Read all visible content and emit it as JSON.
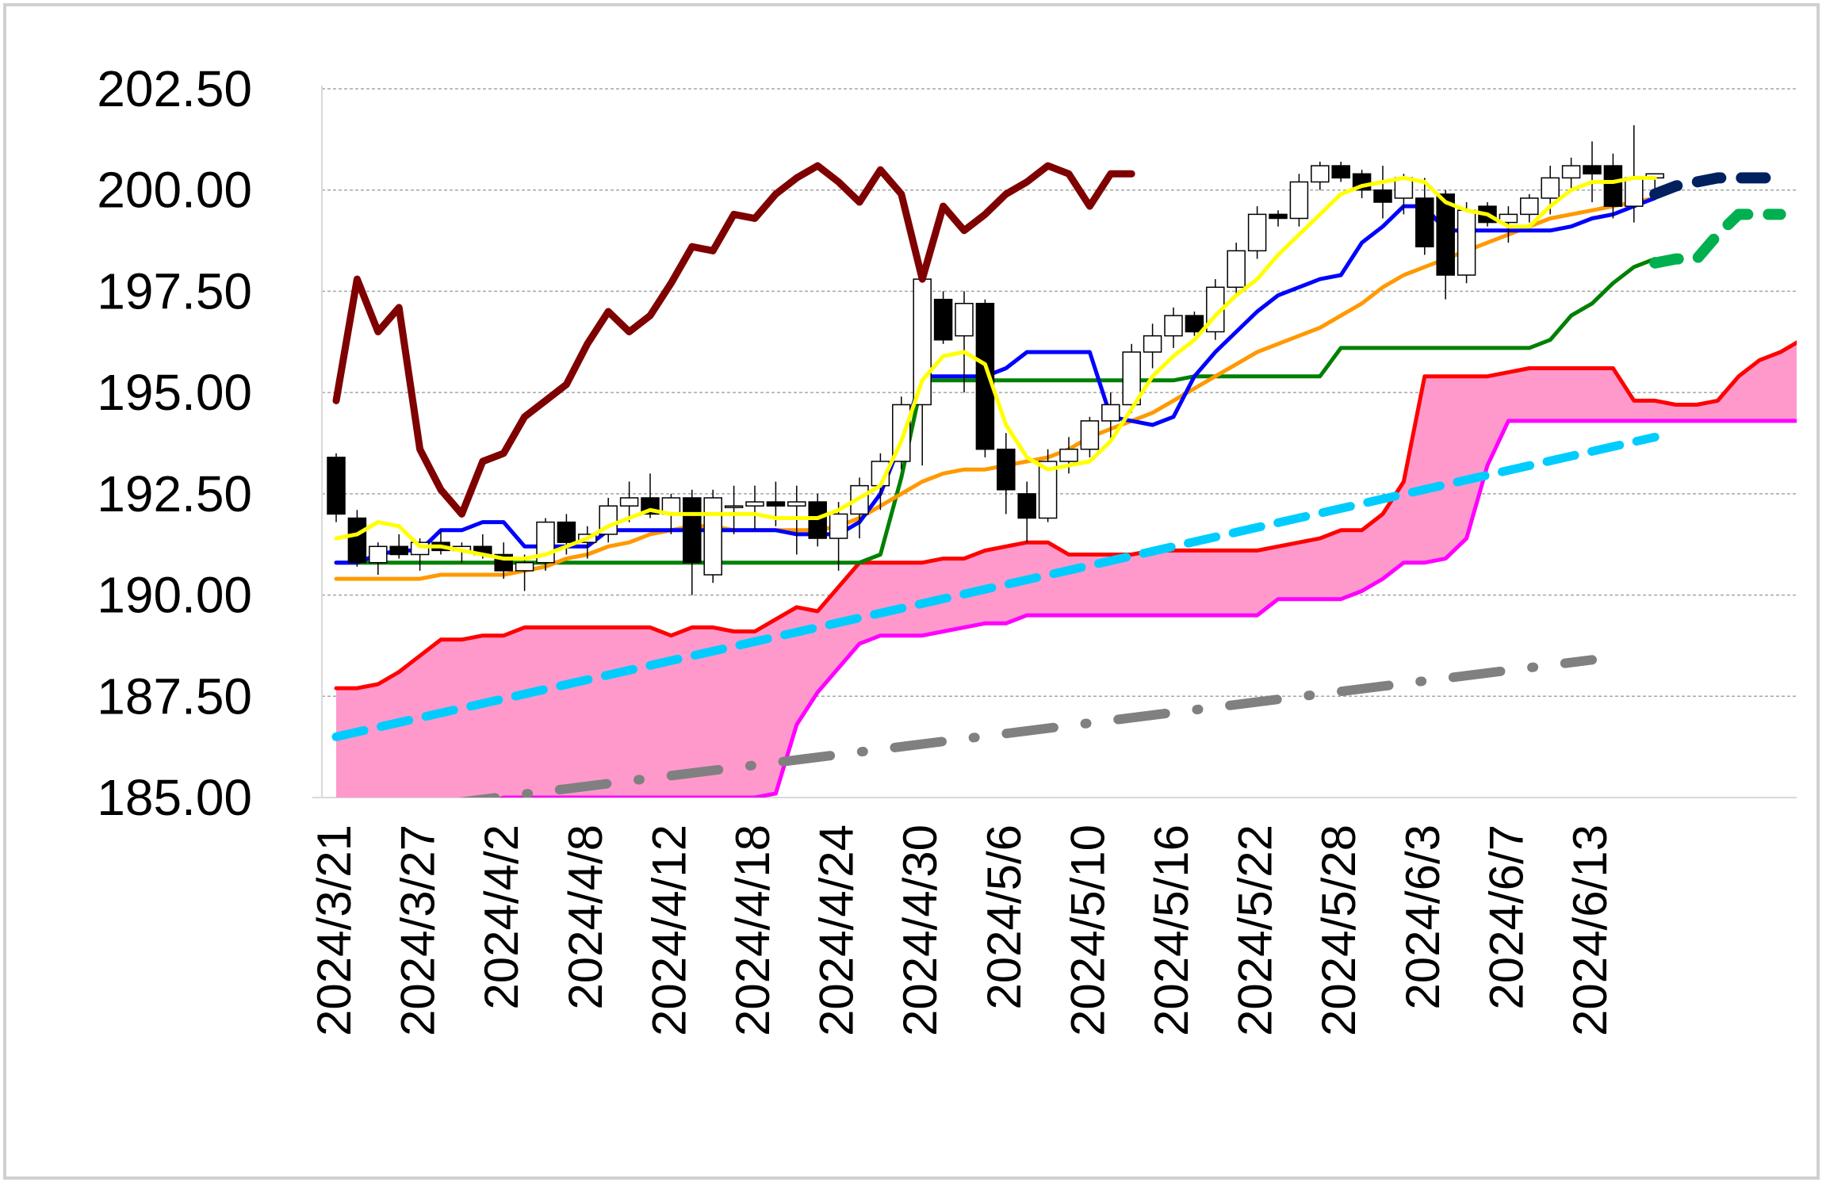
{
  "chart_data": {
    "type": "candlestick-ichimoku",
    "title": "",
    "xlabel": "",
    "ylabel": "",
    "ylim": [
      185.0,
      202.5
    ],
    "y_ticks": [
      "185.00",
      "187.50",
      "190.00",
      "192.50",
      "195.00",
      "197.50",
      "200.00",
      "202.50"
    ],
    "x_tick_labels": [
      "2024/3/21",
      "2024/3/27",
      "2024/4/2",
      "2024/4/8",
      "2024/4/12",
      "2024/4/18",
      "2024/4/24",
      "2024/4/30",
      "2024/5/6",
      "2024/5/10",
      "2024/5/16",
      "2024/5/22",
      "2024/5/28",
      "2024/6/3",
      "2024/6/7",
      "2024/6/13"
    ],
    "x_tick_index": [
      0,
      4,
      8,
      12,
      16,
      20,
      24,
      28,
      32,
      36,
      40,
      44,
      48,
      52,
      56,
      60
    ],
    "grid": "horizontal-dashed",
    "colors": {
      "lagging_span": "#7f0000",
      "conversion_line": "#0000ff",
      "base_line": "#008000",
      "leading_span_a": "#ff0000",
      "leading_span_b": "#ff00ff",
      "cloud_fill": "#ff99cc",
      "short_ma": "#ffff00",
      "long_ma": "#ff9900",
      "trend_line": "#00ccff",
      "long_trend_line": "#808080",
      "projection_blue": "#002060",
      "projection_green": "#00b050",
      "candle_up": "#ffffff",
      "candle_down": "#000000"
    },
    "candles": [
      [
        193.4,
        193.5,
        191.8,
        192.0
      ],
      [
        191.9,
        192.1,
        190.7,
        190.8
      ],
      [
        190.8,
        191.3,
        190.5,
        191.2
      ],
      [
        191.2,
        191.5,
        190.9,
        191.0
      ],
      [
        191.0,
        191.4,
        190.6,
        191.3
      ],
      [
        191.3,
        191.6,
        191.0,
        191.1
      ],
      [
        191.1,
        191.3,
        190.8,
        191.2
      ],
      [
        191.2,
        191.5,
        190.9,
        191.0
      ],
      [
        191.0,
        191.3,
        190.4,
        190.6
      ],
      [
        190.6,
        191.0,
        190.1,
        190.8
      ],
      [
        190.8,
        191.9,
        190.6,
        191.8
      ],
      [
        191.8,
        192.0,
        191.0,
        191.3
      ],
      [
        191.3,
        191.7,
        190.9,
        191.5
      ],
      [
        191.5,
        192.4,
        191.3,
        192.2
      ],
      [
        192.2,
        192.8,
        191.8,
        192.4
      ],
      [
        192.4,
        193.0,
        191.9,
        192.0
      ],
      [
        192.0,
        192.5,
        191.5,
        192.4
      ],
      [
        192.4,
        192.6,
        190.0,
        190.8
      ],
      [
        190.5,
        192.6,
        190.3,
        192.4
      ],
      [
        192.2,
        192.7,
        191.5,
        192.2
      ],
      [
        192.2,
        192.7,
        191.6,
        192.3
      ],
      [
        192.3,
        192.8,
        191.7,
        192.2
      ],
      [
        192.2,
        192.7,
        191.0,
        192.3
      ],
      [
        192.3,
        192.5,
        191.2,
        191.4
      ],
      [
        191.4,
        192.3,
        190.6,
        192.0
      ],
      [
        192.0,
        192.9,
        191.4,
        192.7
      ],
      [
        192.7,
        193.5,
        192.1,
        193.3
      ],
      [
        193.3,
        194.9,
        193.1,
        194.7
      ],
      [
        194.7,
        198.0,
        193.2,
        197.8
      ],
      [
        197.3,
        197.5,
        196.2,
        196.3
      ],
      [
        196.4,
        197.5,
        195.0,
        197.2
      ],
      [
        197.2,
        197.3,
        193.4,
        193.6
      ],
      [
        193.6,
        194.0,
        192.0,
        192.6
      ],
      [
        192.5,
        192.8,
        191.3,
        191.9
      ],
      [
        191.9,
        193.6,
        191.8,
        193.3
      ],
      [
        193.3,
        193.9,
        193.0,
        193.6
      ],
      [
        193.6,
        194.4,
        193.4,
        194.3
      ],
      [
        194.3,
        195.0,
        193.8,
        194.7
      ],
      [
        194.7,
        196.2,
        194.5,
        196.0
      ],
      [
        196.0,
        196.7,
        195.6,
        196.4
      ],
      [
        196.4,
        197.1,
        196.1,
        196.9
      ],
      [
        196.9,
        197.0,
        196.4,
        196.5
      ],
      [
        196.5,
        197.8,
        196.3,
        197.6
      ],
      [
        197.6,
        198.7,
        197.4,
        198.5
      ],
      [
        198.5,
        199.6,
        198.3,
        199.4
      ],
      [
        199.4,
        199.5,
        199.1,
        199.3
      ],
      [
        199.3,
        200.4,
        199.1,
        200.2
      ],
      [
        200.2,
        200.7,
        200.0,
        200.6
      ],
      [
        200.6,
        200.7,
        200.2,
        200.3
      ],
      [
        200.4,
        200.5,
        199.8,
        200.0
      ],
      [
        200.0,
        200.6,
        199.3,
        199.7
      ],
      [
        199.8,
        200.4,
        199.4,
        200.3
      ],
      [
        199.8,
        200.3,
        198.4,
        198.6
      ],
      [
        199.9,
        200.0,
        197.3,
        197.9
      ],
      [
        197.9,
        199.7,
        197.7,
        199.5
      ],
      [
        199.6,
        199.7,
        199.1,
        199.2
      ],
      [
        199.2,
        199.6,
        198.7,
        199.4
      ],
      [
        199.4,
        199.9,
        199.2,
        199.8
      ],
      [
        199.8,
        200.6,
        199.4,
        200.3
      ],
      [
        200.3,
        200.8,
        200.0,
        200.6
      ],
      [
        200.6,
        201.2,
        199.7,
        200.4
      ],
      [
        200.6,
        200.9,
        199.3,
        199.6
      ],
      [
        199.6,
        201.6,
        199.2,
        200.3
      ],
      [
        200.3,
        200.4,
        199.8,
        200.4
      ]
    ],
    "lagging_span": {
      "start": 0,
      "values": [
        194.8,
        197.8,
        196.5,
        197.1,
        193.6,
        192.6,
        192.0,
        193.3,
        193.5,
        194.4,
        194.8,
        195.2,
        196.2,
        197.0,
        196.5,
        196.9,
        197.7,
        198.6,
        198.5,
        199.4,
        199.3,
        199.9,
        200.3,
        200.6,
        200.2,
        199.7,
        200.5,
        199.9,
        197.8,
        199.6,
        199.0,
        199.4,
        199.9,
        200.2,
        200.6,
        200.4,
        199.6,
        200.4,
        200.4
      ]
    },
    "conversion_line": {
      "start": 0,
      "values": [
        190.8,
        190.8,
        191.0,
        191.1,
        191.1,
        191.6,
        191.6,
        191.8,
        191.8,
        191.2,
        191.2,
        191.2,
        191.2,
        191.6,
        191.6,
        191.6,
        191.6,
        191.6,
        191.6,
        191.6,
        191.6,
        191.6,
        191.5,
        191.5,
        191.5,
        191.8,
        192.5,
        193.8,
        195.4,
        195.4,
        195.4,
        195.4,
        195.6,
        196.0,
        196.0,
        196.0,
        196.0,
        194.4,
        194.3,
        194.2,
        194.4,
        195.4,
        196.0,
        196.5,
        197.0,
        197.4,
        197.6,
        197.8,
        197.9,
        198.7,
        199.1,
        199.6,
        199.6,
        199.0,
        199.0,
        199.0,
        199.0,
        199.0,
        199.0,
        199.1,
        199.3,
        199.4,
        199.6,
        199.8
      ]
    },
    "base_line": {
      "start": 0,
      "values": [
        190.8,
        190.8,
        190.8,
        190.8,
        190.8,
        190.8,
        190.8,
        190.8,
        190.8,
        190.8,
        190.8,
        190.8,
        190.8,
        190.8,
        190.8,
        190.8,
        190.8,
        190.8,
        190.8,
        190.8,
        190.8,
        190.8,
        190.8,
        190.8,
        190.8,
        190.8,
        191.0,
        192.9,
        195.3,
        195.3,
        195.3,
        195.3,
        195.3,
        195.3,
        195.3,
        195.3,
        195.3,
        195.3,
        195.3,
        195.3,
        195.3,
        195.4,
        195.4,
        195.4,
        195.4,
        195.4,
        195.4,
        195.4,
        196.1,
        196.1,
        196.1,
        196.1,
        196.1,
        196.1,
        196.1,
        196.1,
        196.1,
        196.1,
        196.3,
        196.9,
        197.2,
        197.7,
        198.1,
        198.3
      ]
    },
    "leading_span_a": {
      "start": 0,
      "values": [
        187.7,
        187.7,
        187.8,
        188.1,
        188.5,
        188.9,
        188.9,
        189.0,
        189.0,
        189.2,
        189.2,
        189.2,
        189.2,
        189.2,
        189.2,
        189.2,
        189.0,
        189.2,
        189.2,
        189.1,
        189.1,
        189.4,
        189.7,
        189.6,
        190.2,
        190.8,
        190.8,
        190.8,
        190.8,
        190.9,
        190.9,
        191.1,
        191.2,
        191.3,
        191.3,
        191.0,
        191.0,
        191.0,
        191.0,
        191.1,
        191.1,
        191.1,
        191.1,
        191.1,
        191.1,
        191.2,
        191.3,
        191.4,
        191.6,
        191.6,
        192.0,
        192.8,
        195.4,
        195.4,
        195.4,
        195.4,
        195.5,
        195.6,
        195.6,
        195.6,
        195.6,
        195.6,
        194.8,
        194.8,
        194.7,
        194.7,
        194.8,
        195.4,
        195.8,
        196.0,
        196.3
      ]
    },
    "leading_span_b": {
      "start": 0,
      "values": [
        184.4,
        184.4,
        184.4,
        184.6,
        184.8,
        184.8,
        184.8,
        184.8,
        185.0,
        185.0,
        185.0,
        185.0,
        185.0,
        185.0,
        185.0,
        185.0,
        185.0,
        185.0,
        185.0,
        185.0,
        185.0,
        185.1,
        186.8,
        187.6,
        188.2,
        188.8,
        189.0,
        189.0,
        189.0,
        189.1,
        189.2,
        189.3,
        189.3,
        189.5,
        189.5,
        189.5,
        189.5,
        189.5,
        189.5,
        189.5,
        189.5,
        189.5,
        189.5,
        189.5,
        189.5,
        189.9,
        189.9,
        189.9,
        189.9,
        190.1,
        190.4,
        190.8,
        190.8,
        190.9,
        191.4,
        193.2,
        194.3,
        194.3,
        194.3,
        194.3,
        194.3,
        194.3,
        194.3,
        194.3,
        194.3,
        194.3,
        194.3,
        194.3,
        194.3,
        194.3,
        194.3
      ]
    },
    "short_ma": {
      "start": 0,
      "values": [
        191.4,
        191.5,
        191.8,
        191.7,
        191.2,
        191.2,
        191.1,
        191.0,
        190.9,
        190.9,
        191.0,
        191.2,
        191.4,
        191.7,
        191.9,
        192.1,
        192.0,
        192.0,
        192.0,
        192.0,
        192.0,
        191.9,
        191.9,
        191.9,
        192.1,
        192.4,
        192.7,
        193.8,
        195.3,
        195.9,
        196.0,
        195.7,
        194.2,
        193.4,
        193.1,
        193.2,
        193.3,
        193.8,
        194.6,
        195.4,
        195.9,
        196.3,
        196.9,
        197.4,
        197.8,
        198.4,
        198.9,
        199.4,
        199.9,
        200.1,
        200.2,
        200.3,
        200.2,
        199.7,
        199.5,
        199.4,
        199.1,
        199.1,
        199.6,
        200.0,
        200.2,
        200.2,
        200.3,
        200.3
      ]
    },
    "long_ma": {
      "start": 0,
      "values": [
        190.4,
        190.4,
        190.4,
        190.4,
        190.4,
        190.5,
        190.5,
        190.5,
        190.5,
        190.6,
        190.7,
        190.9,
        191.0,
        191.2,
        191.3,
        191.5,
        191.6,
        191.7,
        191.7,
        191.6,
        191.6,
        191.6,
        191.6,
        191.6,
        191.7,
        191.9,
        192.2,
        192.5,
        192.8,
        193.0,
        193.1,
        193.1,
        193.2,
        193.3,
        193.4,
        193.6,
        193.9,
        194.1,
        194.3,
        194.5,
        194.8,
        195.1,
        195.4,
        195.7,
        196.0,
        196.2,
        196.4,
        196.6,
        196.9,
        197.2,
        197.6,
        197.9,
        198.1,
        198.3,
        198.5,
        198.7,
        198.9,
        199.1,
        199.3,
        199.4,
        199.5,
        199.6,
        199.7,
        199.8
      ]
    },
    "trend_line": {
      "start": 0,
      "values": [
        186.5,
        193.9
      ],
      "end": 63
    },
    "long_trend_line": {
      "start": 0,
      "values": [
        184.5,
        188.4
      ],
      "end": 60
    },
    "projection_blue": {
      "start": 63,
      "values": [
        199.9,
        200.1,
        200.2,
        200.3,
        200.3,
        200.3,
        200.3
      ]
    },
    "projection_green": {
      "start": 63,
      "values": [
        198.2,
        198.3,
        198.3,
        198.9,
        199.4,
        199.4,
        199.4
      ]
    }
  }
}
